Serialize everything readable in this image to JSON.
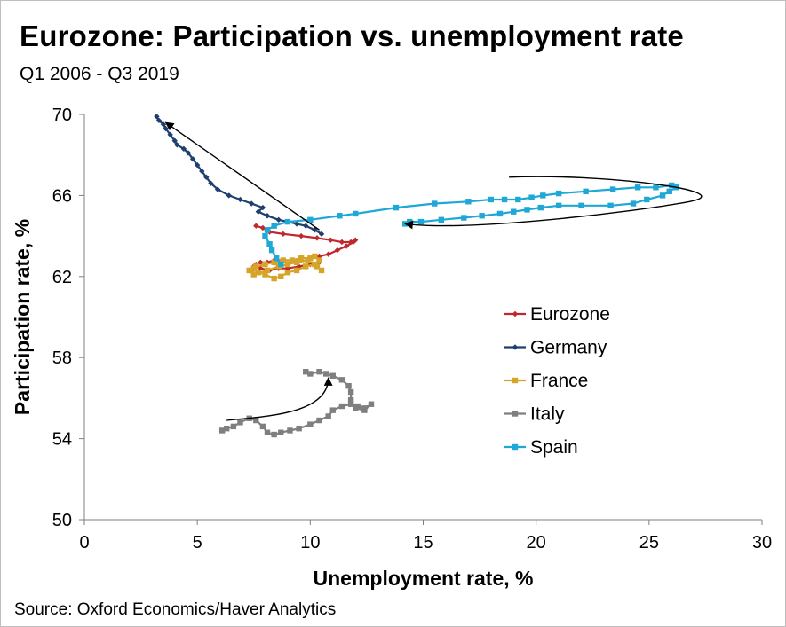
{
  "title": "Eurozone: Participation  vs. unemployment rate",
  "subtitle": "Q1 2006 - Q3 2019",
  "source": "Source: Oxford Economics/Haver Analytics",
  "chart_data": {
    "type": "scatter",
    "xlabel": "Unemployment rate, %",
    "ylabel": "Participation rate, %",
    "xlim": [
      0,
      30
    ],
    "ylim": [
      50,
      70
    ],
    "xticks": [
      0,
      5,
      10,
      15,
      20,
      25,
      30
    ],
    "yticks": [
      50,
      54,
      58,
      62,
      66,
      70
    ],
    "grid": false,
    "legend_position": "right",
    "series": [
      {
        "name": "Eurozone",
        "color": "#c0282d",
        "marker": "diamond",
        "points": [
          [
            7.6,
            64.5
          ],
          [
            7.9,
            64.4
          ],
          [
            8.2,
            64.2
          ],
          [
            8.8,
            64.1
          ],
          [
            9.6,
            64.0
          ],
          [
            10.3,
            63.9
          ],
          [
            10.9,
            63.8
          ],
          [
            11.4,
            63.7
          ],
          [
            11.8,
            63.7
          ],
          [
            12.0,
            63.8
          ],
          [
            11.9,
            63.7
          ],
          [
            11.6,
            63.5
          ],
          [
            11.2,
            63.3
          ],
          [
            10.8,
            63.1
          ],
          [
            10.4,
            63.0
          ],
          [
            10.0,
            62.9
          ],
          [
            9.6,
            62.9
          ],
          [
            9.2,
            62.8
          ],
          [
            8.8,
            62.8
          ],
          [
            8.4,
            62.8
          ],
          [
            8.1,
            62.7
          ],
          [
            7.8,
            62.7
          ],
          [
            7.6,
            62.6
          ],
          [
            7.5,
            62.5
          ],
          [
            7.8,
            62.4
          ],
          [
            8.2,
            62.3
          ],
          [
            8.6,
            62.4
          ],
          [
            9.0,
            62.4
          ],
          [
            9.5,
            62.5
          ],
          [
            10.0,
            62.6
          ],
          [
            10.4,
            62.7
          ]
        ]
      },
      {
        "name": "Germany",
        "color": "#1f3f6f",
        "marker": "diamond",
        "points": [
          [
            10.5,
            64.1
          ],
          [
            10.2,
            64.3
          ],
          [
            9.8,
            64.5
          ],
          [
            9.4,
            64.6
          ],
          [
            9.0,
            64.7
          ],
          [
            8.6,
            64.8
          ],
          [
            8.1,
            65.0
          ],
          [
            7.7,
            65.2
          ],
          [
            7.9,
            65.4
          ],
          [
            7.4,
            65.6
          ],
          [
            6.9,
            65.8
          ],
          [
            6.4,
            66.0
          ],
          [
            5.9,
            66.3
          ],
          [
            5.6,
            66.6
          ],
          [
            5.4,
            66.9
          ],
          [
            5.2,
            67.2
          ],
          [
            5.0,
            67.5
          ],
          [
            4.8,
            67.8
          ],
          [
            4.6,
            68.1
          ],
          [
            4.4,
            68.3
          ],
          [
            4.1,
            68.5
          ],
          [
            4.0,
            68.7
          ],
          [
            3.8,
            69.0
          ],
          [
            3.6,
            69.3
          ],
          [
            3.5,
            69.5
          ],
          [
            3.3,
            69.7
          ],
          [
            3.2,
            69.9
          ]
        ]
      },
      {
        "name": "France",
        "color": "#d4a528",
        "marker": "square",
        "points": [
          [
            7.4,
            62.3
          ],
          [
            7.6,
            62.5
          ],
          [
            8.0,
            62.6
          ],
          [
            8.4,
            62.7
          ],
          [
            8.8,
            62.8
          ],
          [
            9.2,
            62.8
          ],
          [
            9.6,
            62.9
          ],
          [
            10.0,
            62.9
          ],
          [
            10.2,
            63.0
          ],
          [
            10.4,
            62.8
          ],
          [
            10.2,
            62.6
          ],
          [
            9.8,
            62.5
          ],
          [
            9.4,
            62.3
          ],
          [
            9.0,
            62.2
          ],
          [
            8.7,
            62.0
          ],
          [
            8.4,
            61.9
          ],
          [
            8.0,
            62.1
          ],
          [
            7.7,
            62.2
          ],
          [
            7.5,
            62.4
          ],
          [
            7.3,
            62.3
          ],
          [
            7.5,
            62.1
          ],
          [
            8.1,
            62.3
          ],
          [
            8.6,
            62.5
          ],
          [
            9.0,
            62.6
          ],
          [
            9.4,
            62.7
          ],
          [
            9.9,
            62.8
          ],
          [
            10.3,
            62.5
          ],
          [
            10.5,
            62.3
          ]
        ]
      },
      {
        "name": "Italy",
        "color": "#7f7f7f",
        "marker": "square",
        "points": [
          [
            6.1,
            54.4
          ],
          [
            6.3,
            54.5
          ],
          [
            6.6,
            54.6
          ],
          [
            6.9,
            54.8
          ],
          [
            7.3,
            55.0
          ],
          [
            7.6,
            54.9
          ],
          [
            7.9,
            54.6
          ],
          [
            8.1,
            54.3
          ],
          [
            8.4,
            54.2
          ],
          [
            8.7,
            54.3
          ],
          [
            9.1,
            54.4
          ],
          [
            9.5,
            54.5
          ],
          [
            10.0,
            54.7
          ],
          [
            10.4,
            54.9
          ],
          [
            10.8,
            55.1
          ],
          [
            11.0,
            55.4
          ],
          [
            11.4,
            55.6
          ],
          [
            11.8,
            55.7
          ],
          [
            12.1,
            55.6
          ],
          [
            12.4,
            55.5
          ],
          [
            12.7,
            55.7
          ],
          [
            12.4,
            55.4
          ],
          [
            12.0,
            55.5
          ],
          [
            11.8,
            55.9
          ],
          [
            11.8,
            56.3
          ],
          [
            11.7,
            56.6
          ],
          [
            11.4,
            56.9
          ],
          [
            11.0,
            57.1
          ],
          [
            10.7,
            57.2
          ],
          [
            10.4,
            57.3
          ],
          [
            10.0,
            57.2
          ],
          [
            9.8,
            57.3
          ]
        ]
      },
      {
        "name": "Spain",
        "color": "#1fa8d6",
        "marker": "square",
        "points": [
          [
            8.7,
            62.6
          ],
          [
            8.5,
            62.9
          ],
          [
            8.3,
            63.3
          ],
          [
            8.2,
            63.6
          ],
          [
            8.0,
            64.0
          ],
          [
            8.1,
            64.3
          ],
          [
            8.4,
            64.5
          ],
          [
            9.0,
            64.7
          ],
          [
            10.0,
            64.8
          ],
          [
            11.3,
            65.0
          ],
          [
            12.0,
            65.1
          ],
          [
            13.8,
            65.4
          ],
          [
            15.5,
            65.6
          ],
          [
            17.0,
            65.7
          ],
          [
            18.0,
            65.8
          ],
          [
            18.6,
            65.8
          ],
          [
            19.2,
            65.8
          ],
          [
            19.8,
            65.9
          ],
          [
            20.3,
            66.0
          ],
          [
            21.0,
            66.1
          ],
          [
            22.2,
            66.2
          ],
          [
            23.4,
            66.3
          ],
          [
            24.5,
            66.4
          ],
          [
            25.3,
            66.4
          ],
          [
            26.0,
            66.5
          ],
          [
            26.2,
            66.4
          ],
          [
            25.9,
            66.2
          ],
          [
            25.6,
            66.0
          ],
          [
            24.9,
            65.8
          ],
          [
            24.3,
            65.6
          ],
          [
            23.3,
            65.5
          ],
          [
            22.0,
            65.5
          ],
          [
            21.0,
            65.5
          ],
          [
            20.2,
            65.4
          ],
          [
            19.6,
            65.3
          ],
          [
            19.0,
            65.2
          ],
          [
            18.4,
            65.1
          ],
          [
            17.6,
            65.0
          ],
          [
            16.8,
            64.9
          ],
          [
            15.8,
            64.8
          ],
          [
            14.9,
            64.7
          ],
          [
            14.4,
            64.7
          ],
          [
            14.2,
            64.6
          ]
        ]
      }
    ],
    "annotations": [
      {
        "type": "arrow",
        "desc": "Germany trend",
        "from": [
          10.4,
          64.3
        ],
        "to": [
          3.6,
          69.6
        ],
        "style": "straight"
      },
      {
        "type": "arrow",
        "desc": "Spain loop",
        "from": [
          18.8,
          66.9
        ],
        "to": [
          14.2,
          64.6
        ],
        "style": "loop"
      },
      {
        "type": "arrow",
        "desc": "Italy trend",
        "from": [
          6.3,
          54.9
        ],
        "to": [
          10.8,
          57.0
        ],
        "style": "curve"
      }
    ]
  }
}
